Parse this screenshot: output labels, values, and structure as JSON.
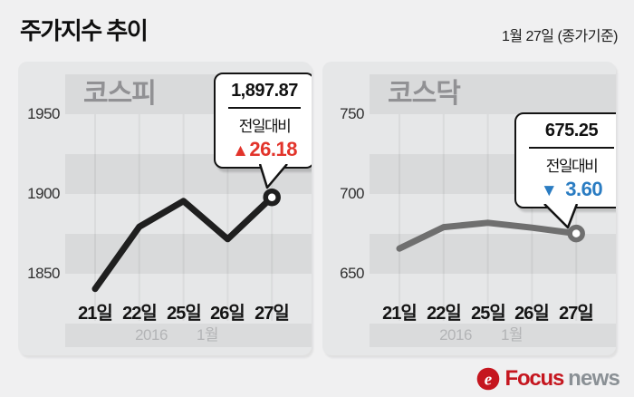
{
  "header": {
    "title": "주가지수 추이",
    "date_note": "1월 27일 (종가기준)"
  },
  "chart_data": [
    {
      "type": "line",
      "name": "kospi",
      "title": "코스피",
      "categories": [
        "21일",
        "22일",
        "25일",
        "26일",
        "27일"
      ],
      "values": [
        1840.53,
        1879.43,
        1895.54,
        1871.69,
        1897.87
      ],
      "y_ticks": [
        1950,
        1900,
        1850
      ],
      "ylim": [
        1825,
        1975
      ],
      "grid": "horizontal-bands",
      "line_color": "#1f1f1f",
      "x_axis_note": [
        "2016",
        "1월"
      ],
      "callout": {
        "value": "1,897.87",
        "label": "전일대비",
        "arrow": "▲",
        "change": "26.18",
        "direction": "up",
        "change_color": "#e2342b"
      }
    },
    {
      "type": "line",
      "name": "kosdaq",
      "title": "코스닥",
      "categories": [
        "21일",
        "22일",
        "25일",
        "26일",
        "27일"
      ],
      "values": [
        665.79,
        679.22,
        681.92,
        678.85,
        675.25
      ],
      "y_ticks": [
        750,
        700,
        650
      ],
      "ylim": [
        650,
        775
      ],
      "grid": "horizontal-bands",
      "line_color": "#6f6f6f",
      "x_axis_note": [
        "2016",
        "1월"
      ],
      "callout": {
        "value": "675.25",
        "label": "전일대비",
        "arrow": "▼",
        "change": "3.60",
        "direction": "down",
        "change_color": "#2a7cc2"
      }
    }
  ],
  "footer": {
    "logo": {
      "icon": "focus-news-icon",
      "brand_primary": "Focus",
      "brand_secondary": "news",
      "brand_color": "#c5161f",
      "secondary_color": "#8a9095"
    }
  }
}
